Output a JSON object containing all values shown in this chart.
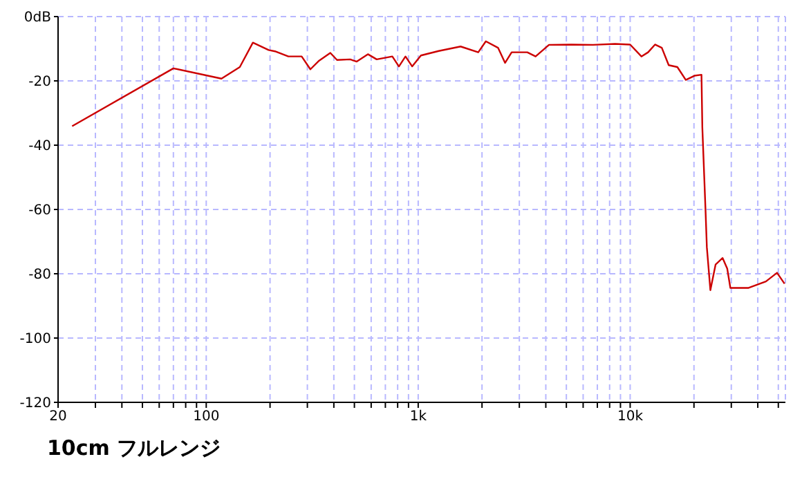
{
  "chart_data": {
    "type": "line",
    "title": "10cm フルレンジ",
    "x": [
      23.3,
      70,
      118,
      144,
      166,
      197,
      211,
      244,
      282,
      310,
      341,
      385,
      414,
      477,
      513,
      579,
      637,
      755,
      811,
      871,
      937,
      1030,
      1250,
      1585,
      1920,
      2085,
      2380,
      2570,
      2760,
      3270,
      3580,
      4140,
      5270,
      6670,
      8480,
      10000,
      11300,
      12150,
      13100,
      14100,
      15200,
      16700,
      18300,
      20100,
      21700,
      21900,
      22700,
      23000,
      23900,
      25300,
      27300,
      28700,
      29700,
      36200,
      43700,
      49300,
      53500
    ],
    "series": [
      {
        "color": "#cc0000",
        "values": [
          -34.1,
          -16.1,
          -19.3,
          -15.7,
          -8.1,
          -10.4,
          -10.8,
          -12.4,
          -12.4,
          -16.4,
          -13.7,
          -11.3,
          -13.5,
          -13.3,
          -14,
          -11.7,
          -13.3,
          -12.4,
          -15.5,
          -12.4,
          -15.5,
          -12.1,
          -10.7,
          -9.3,
          -11.1,
          -7.7,
          -9.7,
          -14.4,
          -11.1,
          -11.1,
          -12.4,
          -8.8,
          -8.7,
          -8.8,
          -8.5,
          -8.7,
          -12.4,
          -11.1,
          -8.7,
          -9.7,
          -15.1,
          -15.7,
          -19.7,
          -18.4,
          -18.1,
          -34.4,
          -61.1,
          -71.7,
          -85.1,
          -77.1,
          -75.1,
          -78.4,
          -84.4,
          -84.4,
          -82.4,
          -79.7,
          -83.1
        ]
      }
    ],
    "log": "x",
    "xlim": [
      20,
      54000
    ],
    "xticks": [
      20,
      {
        "value": 30,
        "label": null
      },
      {
        "value": 40,
        "label": null
      },
      {
        "value": 50,
        "label": null
      },
      {
        "value": 60,
        "label": null
      },
      {
        "value": 70,
        "label": null
      },
      {
        "value": 80,
        "label": null
      },
      {
        "value": 90,
        "label": null
      },
      100,
      {
        "value": 200,
        "label": null
      },
      {
        "value": 300,
        "label": null
      },
      {
        "value": 400,
        "label": null
      },
      {
        "value": 500,
        "label": null
      },
      {
        "value": 600,
        "label": null
      },
      {
        "value": 700,
        "label": null
      },
      {
        "value": 800,
        "label": null
      },
      {
        "value": 900,
        "label": null
      },
      {
        "value": 1000,
        "label": "1k"
      },
      {
        "value": 2000,
        "label": null
      },
      {
        "value": 3000,
        "label": null
      },
      {
        "value": 4000,
        "label": null
      },
      {
        "value": 5000,
        "label": null
      },
      {
        "value": 6000,
        "label": null
      },
      {
        "value": 7000,
        "label": null
      },
      {
        "value": 8000,
        "label": null
      },
      {
        "value": 9000,
        "label": null
      },
      {
        "value": 10000,
        "label": "10k"
      },
      {
        "value": 20000,
        "label": null
      },
      {
        "value": 30000,
        "label": null
      },
      {
        "value": 40000,
        "label": null
      },
      {
        "value": 50000,
        "label": null
      }
    ],
    "ylim": [
      -120,
      0
    ],
    "yticks": [
      {
        "value": 0,
        "label": "0dB"
      },
      -20,
      -40,
      -60,
      -80,
      -100,
      -120
    ],
    "grid": true,
    "marker": "none",
    "line_style": "solid"
  }
}
